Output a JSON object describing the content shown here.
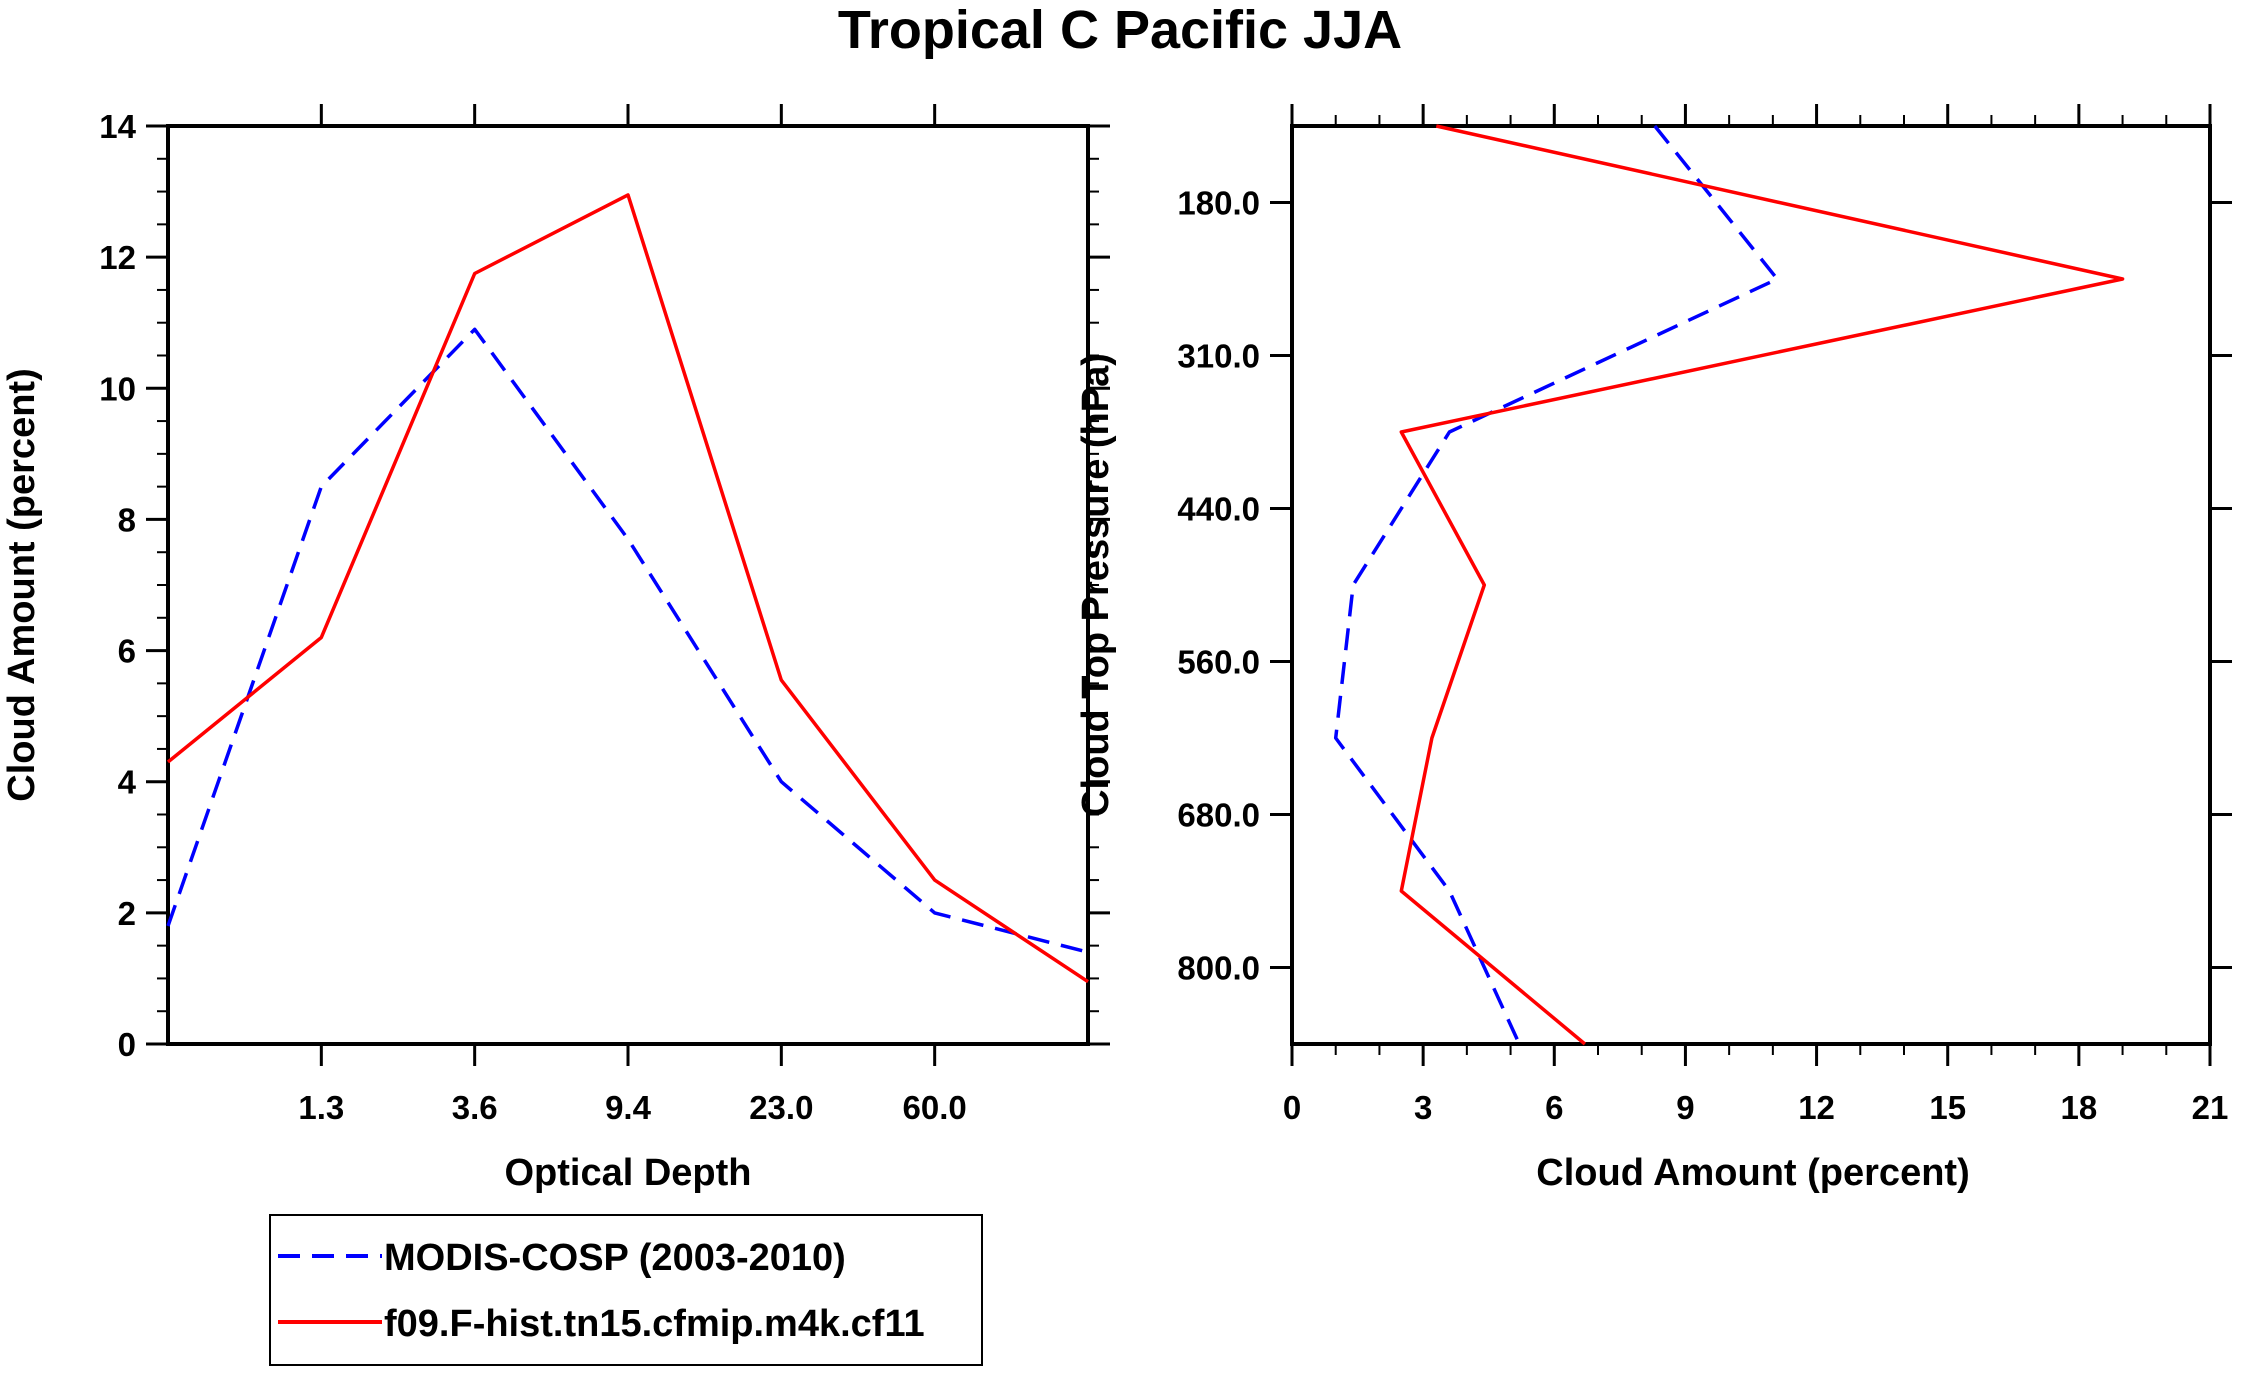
{
  "title": "Tropical C Pacific JJA",
  "colors": {
    "obs": "#0000ff",
    "model": "#ff0000",
    "axis": "#000000"
  },
  "legend": {
    "obs_label": "MODIS-COSP (2003-2010)",
    "model_label": "f09.F-hist.tn15.cfmip.m4k.cf11"
  },
  "chart_data": [
    {
      "type": "line",
      "panel": "left",
      "xlabel": "Optical Depth",
      "ylabel": "Cloud Amount (percent)",
      "x_tick_labels": [
        "1.3",
        "3.6",
        "9.4",
        "23.0",
        "60.0"
      ],
      "x_categories_index": [
        0,
        1,
        2,
        3,
        4,
        5,
        6
      ],
      "xlim": [
        0,
        6
      ],
      "ylim": [
        0,
        14
      ],
      "y_ticks": [
        "0",
        "2",
        "4",
        "6",
        "8",
        "10",
        "12",
        "14"
      ],
      "series": [
        {
          "name": "MODIS-COSP (2003-2010)",
          "style": "dashed",
          "x": [
            0,
            1,
            2,
            3,
            4,
            5,
            6
          ],
          "y": [
            1.8,
            8.5,
            10.9,
            7.7,
            4.0,
            2.0,
            1.4
          ]
        },
        {
          "name": "f09.F-hist.tn15.cfmip.m4k.cf11",
          "style": "solid",
          "x": [
            0,
            1,
            2,
            3,
            4,
            5,
            6
          ],
          "y": [
            4.3,
            6.2,
            11.75,
            12.95,
            5.55,
            2.5,
            0.95
          ]
        }
      ]
    },
    {
      "type": "line",
      "panel": "right",
      "xlabel": "Cloud Amount (percent)",
      "ylabel": "Cloud Top Pressure (hPa)",
      "x_ticks": [
        "0",
        "3",
        "6",
        "9",
        "12",
        "15",
        "18",
        "21"
      ],
      "xlim": [
        0,
        21
      ],
      "y_tick_labels": [
        "180.0",
        "310.0",
        "440.0",
        "560.0",
        "680.0",
        "800.0"
      ],
      "y_levels": [
        0,
        1,
        2,
        3,
        4,
        5,
        6
      ],
      "ylim": [
        0,
        6
      ],
      "series": [
        {
          "name": "MODIS-COSP (2003-2010)",
          "style": "dashed",
          "x": [
            8.3,
            11.1,
            3.6,
            1.4,
            1.0,
            3.6,
            5.2
          ],
          "y": [
            0,
            1,
            2,
            3,
            4,
            5,
            6
          ]
        },
        {
          "name": "f09.F-hist.tn15.cfmip.m4k.cf11",
          "style": "solid",
          "x": [
            3.3,
            19.0,
            2.5,
            4.4,
            3.2,
            2.5,
            6.7
          ],
          "y": [
            0,
            1,
            2,
            3,
            4,
            5,
            6
          ]
        }
      ]
    }
  ]
}
